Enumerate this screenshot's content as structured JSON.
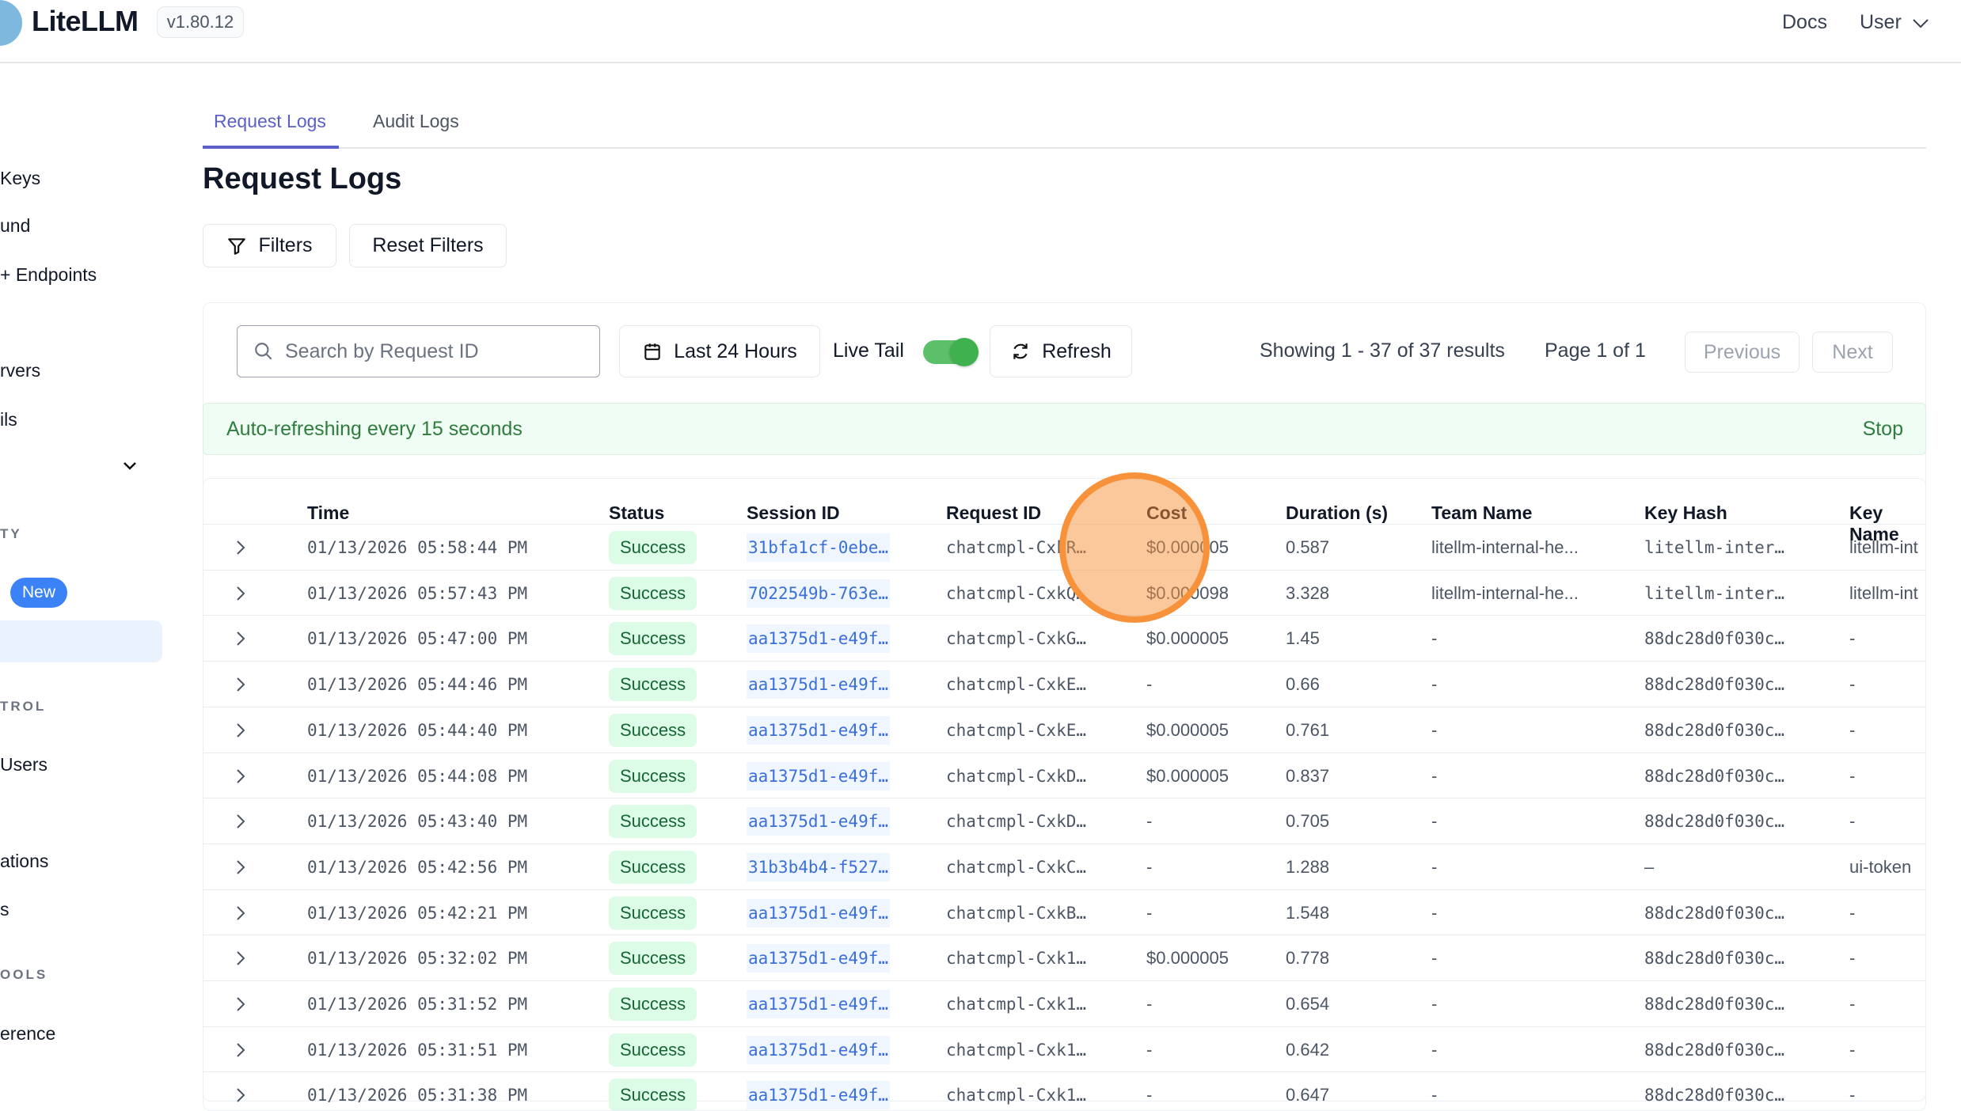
{
  "header": {
    "brand": "LiteLLM",
    "version": "v1.80.12",
    "docs": "Docs",
    "user": "User"
  },
  "sidebar": {
    "items": [
      "Keys",
      "und",
      "+ Endpoints",
      "rvers",
      "ils",
      "TY",
      "New",
      "TROL",
      "Users",
      "ations",
      "s",
      "OOLS",
      "erence"
    ]
  },
  "tabs": [
    "Request Logs",
    "Audit Logs"
  ],
  "page_title": "Request Logs",
  "actions": {
    "filters": "Filters",
    "reset": "Reset Filters"
  },
  "toolbar": {
    "search_placeholder": "Search by Request ID",
    "time_range": "Last 24 Hours",
    "live_tail": "Live Tail",
    "live_tail_on": true,
    "refresh": "Refresh",
    "showing": "Showing 1 - 37 of 37 results",
    "page": "Page 1 of 1",
    "previous": "Previous",
    "next": "Next"
  },
  "banner": {
    "text": "Auto-refreshing every 15 seconds",
    "stop": "Stop"
  },
  "colors": {
    "accent": "#5b5fc7",
    "success_bg": "#dcfce7",
    "toggle": "#5cbf6a",
    "highlight": "#f7923a"
  },
  "table": {
    "columns": [
      "Time",
      "Status",
      "Session ID",
      "Request ID",
      "Cost",
      "Duration (s)",
      "Team Name",
      "Key Hash",
      "Key Name"
    ],
    "rows": [
      [
        "01/13/2026 05:58:44 PM",
        "Success",
        "31bfa1cf-0ebe…",
        "chatcmpl-CxkR…",
        "$0.000005",
        "0.587",
        "litellm-internal-he...",
        "litellm-inter…",
        "litellm-int"
      ],
      [
        "01/13/2026 05:57:43 PM",
        "Success",
        "7022549b-763e…",
        "chatcmpl-CxkQ…",
        "$0.000098",
        "3.328",
        "litellm-internal-he...",
        "litellm-inter…",
        "litellm-int"
      ],
      [
        "01/13/2026 05:47:00 PM",
        "Success",
        "aa1375d1-e49f…",
        "chatcmpl-CxkG…",
        "$0.000005",
        "1.45",
        "-",
        "88dc28d0f030c…",
        "-"
      ],
      [
        "01/13/2026 05:44:46 PM",
        "Success",
        "aa1375d1-e49f…",
        "chatcmpl-CxkE…",
        "-",
        "0.66",
        "-",
        "88dc28d0f030c…",
        "-"
      ],
      [
        "01/13/2026 05:44:40 PM",
        "Success",
        "aa1375d1-e49f…",
        "chatcmpl-CxkE…",
        "$0.000005",
        "0.761",
        "-",
        "88dc28d0f030c…",
        "-"
      ],
      [
        "01/13/2026 05:44:08 PM",
        "Success",
        "aa1375d1-e49f…",
        "chatcmpl-CxkD…",
        "$0.000005",
        "0.837",
        "-",
        "88dc28d0f030c…",
        "-"
      ],
      [
        "01/13/2026 05:43:40 PM",
        "Success",
        "aa1375d1-e49f…",
        "chatcmpl-CxkD…",
        "-",
        "0.705",
        "-",
        "88dc28d0f030c…",
        "-"
      ],
      [
        "01/13/2026 05:42:56 PM",
        "Success",
        "31b3b4b4-f527…",
        "chatcmpl-CxkC…",
        "-",
        "1.288",
        "-",
        "–",
        "ui-token"
      ],
      [
        "01/13/2026 05:42:21 PM",
        "Success",
        "aa1375d1-e49f…",
        "chatcmpl-CxkB…",
        "-",
        "1.548",
        "-",
        "88dc28d0f030c…",
        "-"
      ],
      [
        "01/13/2026 05:32:02 PM",
        "Success",
        "aa1375d1-e49f…",
        "chatcmpl-Cxk1…",
        "$0.000005",
        "0.778",
        "-",
        "88dc28d0f030c…",
        "-"
      ],
      [
        "01/13/2026 05:31:52 PM",
        "Success",
        "aa1375d1-e49f…",
        "chatcmpl-Cxk1…",
        "-",
        "0.654",
        "-",
        "88dc28d0f030c…",
        "-"
      ],
      [
        "01/13/2026 05:31:51 PM",
        "Success",
        "aa1375d1-e49f…",
        "chatcmpl-Cxk1…",
        "-",
        "0.642",
        "-",
        "88dc28d0f030c…",
        "-"
      ],
      [
        "01/13/2026 05:31:38 PM",
        "Success",
        "aa1375d1-e49f…",
        "chatcmpl-Cxk1…",
        "-",
        "0.647",
        "-",
        "88dc28d0f030c…",
        "-"
      ]
    ]
  }
}
